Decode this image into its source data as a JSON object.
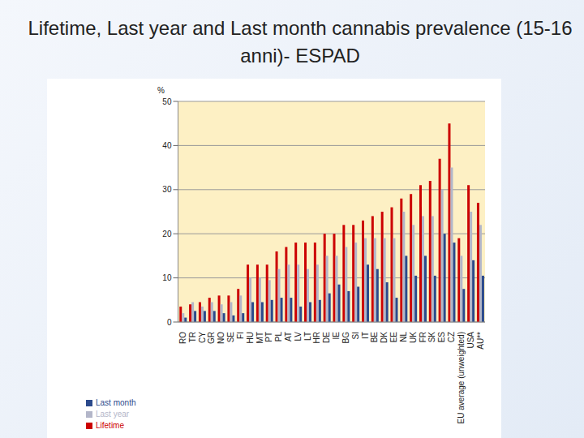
{
  "chart_data": {
    "type": "bar",
    "title": "Lifetime, Last year and Last month cannabis prevalence (15-16 anni)- ESPAD",
    "ylabel": "%",
    "categories": [
      "RO",
      "TR",
      "CY",
      "GR",
      "NO",
      "SE",
      "FI",
      "HU",
      "MT",
      "PT",
      "PL",
      "AT",
      "LV",
      "LT",
      "HR",
      "DE",
      "IE",
      "BG",
      "SI",
      "IT",
      "BE",
      "DK",
      "EE",
      "NL",
      "UK",
      "FR",
      "SK",
      "ES",
      "CZ",
      "EU average (unweighted)",
      "USA",
      "AU**"
    ],
    "series": [
      {
        "name": "Lifetime",
        "color": "#cc0000",
        "values": [
          3.5,
          4,
          4.5,
          5.5,
          6,
          6,
          7.5,
          13,
          13,
          13,
          16,
          17,
          18,
          18,
          18,
          20,
          20,
          22,
          22,
          23,
          24,
          25,
          26,
          28,
          29,
          31,
          32,
          37,
          45,
          19,
          31,
          27
        ]
      },
      {
        "name": "Last year",
        "color": "#b3b6c9",
        "values": [
          2,
          4.5,
          3.5,
          4.5,
          4,
          4.5,
          6,
          10,
          10,
          9.5,
          12,
          13,
          13,
          12,
          13,
          15,
          15,
          17,
          18,
          19,
          19,
          19,
          19,
          25,
          22,
          24,
          24,
          30,
          35,
          15,
          25,
          22
        ]
      },
      {
        "name": "Last month",
        "color": "#2b4a8c",
        "values": [
          1,
          2.5,
          2.5,
          2.5,
          2,
          1.5,
          2,
          4.5,
          4.5,
          5,
          5.5,
          5.5,
          3.5,
          4.5,
          5,
          6.5,
          8.5,
          7,
          8,
          13,
          12,
          9,
          5.5,
          15,
          10.5,
          15,
          10.5,
          20,
          18,
          7.5,
          14,
          10.5
        ]
      }
    ],
    "ylim": [
      0,
      50
    ],
    "yticks": [
      0,
      10,
      20,
      30,
      40,
      50
    ],
    "grid": true,
    "legend": "lower left"
  }
}
